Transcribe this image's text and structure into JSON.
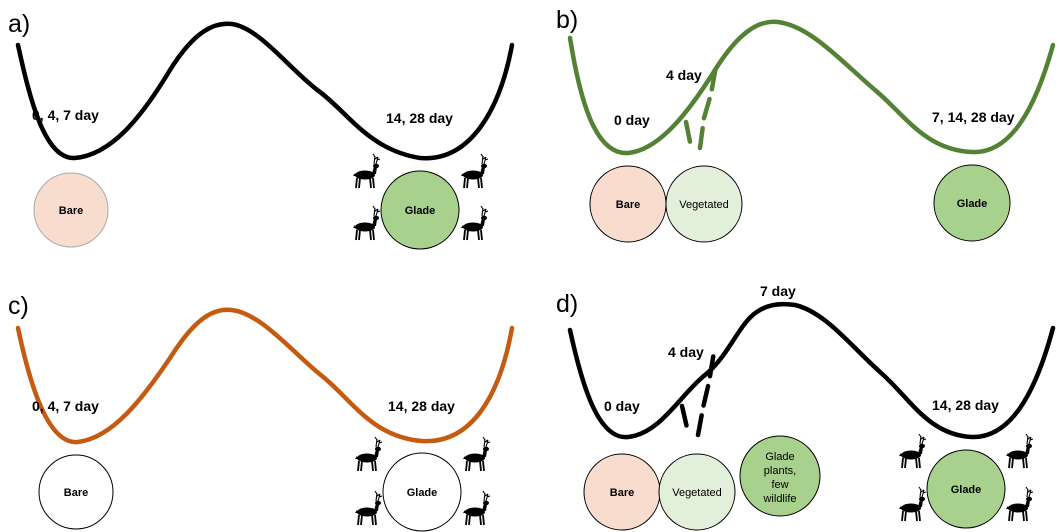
{
  "colors": {
    "black": "#000000",
    "green": "#548235",
    "orange": "#c55a11",
    "bare_fill": "#f8ddce",
    "vegetated_fill": "#e2efda",
    "glade_fill": "#a9d18e",
    "white_fill": "#ffffff"
  },
  "panels": {
    "a": {
      "letter": "a)",
      "left_label": "0, 4, 7 day",
      "right_label": "14, 28 day",
      "bare": "Bare",
      "glade": "Glade"
    },
    "b": {
      "letter": "b)",
      "left_label": "0 day",
      "mid_label": "4 day",
      "right_label": "7, 14, 28 day",
      "bare": "Bare",
      "vegetated": "Vegetated",
      "glade": "Glade"
    },
    "c": {
      "letter": "c)",
      "left_label": "0, 4, 7 day",
      "right_label": "14, 28 day",
      "bare": "Bare",
      "glade": "Glade"
    },
    "d": {
      "letter": "d)",
      "left_label": "0 day",
      "mid_label": "4 day",
      "peak_label": "7 day",
      "right_label": "14, 28 day",
      "bare": "Bare",
      "vegetated": "Vegetated",
      "glade_plants": [
        "Glade",
        "plants,",
        "few",
        "wildlife"
      ],
      "glade": "Glade"
    }
  }
}
